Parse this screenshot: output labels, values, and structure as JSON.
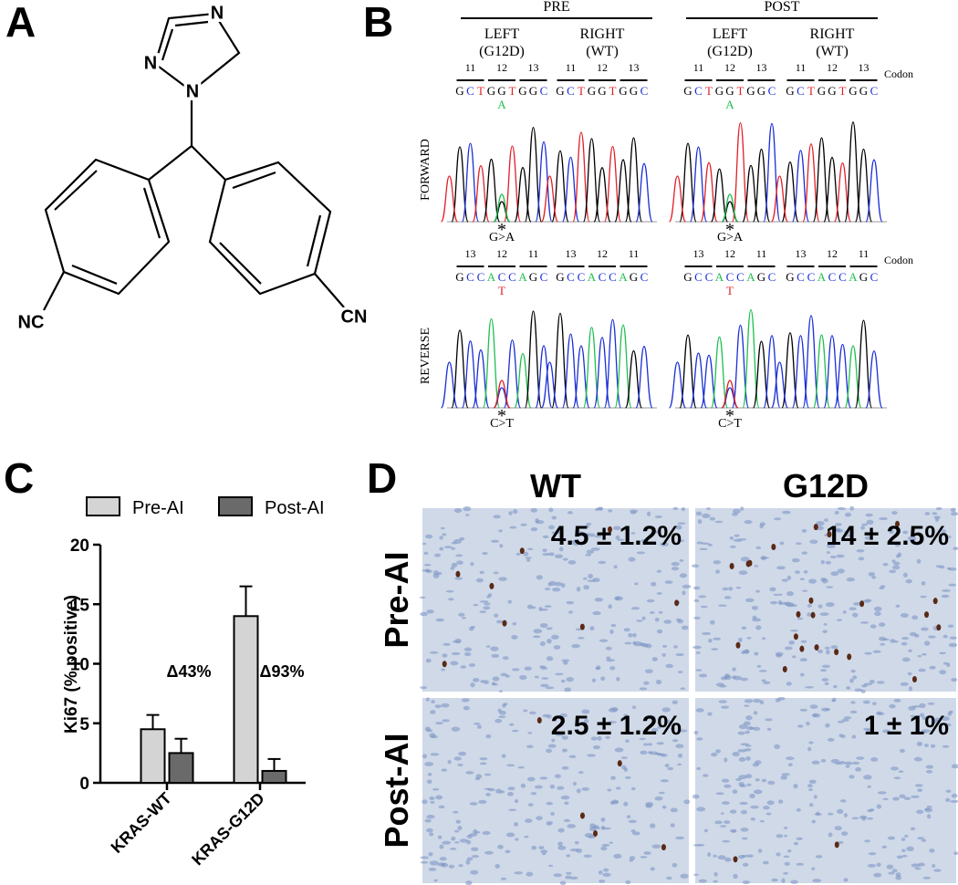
{
  "panel_a": {
    "label": "A",
    "atoms": [
      "N",
      "N",
      "N",
      "NC",
      "CN"
    ]
  },
  "panel_b": {
    "label": "B",
    "groups": [
      "PRE",
      "POST"
    ],
    "samples": [
      [
        "LEFT",
        "(G12D)"
      ],
      [
        "RIGHT",
        "(WT)"
      ],
      [
        "LEFT",
        "(G12D)"
      ],
      [
        "RIGHT",
        "(WT)"
      ]
    ],
    "codon_label": "Codon",
    "forward": {
      "name": "FORWARD",
      "codons": [
        "11",
        "12",
        "13"
      ],
      "bases": [
        "G",
        "C",
        "T",
        "G",
        "G",
        "T",
        "G",
        "G",
        "C"
      ],
      "mutant_base": "A",
      "marker": "*",
      "change": "G>A"
    },
    "reverse": {
      "name": "REVERSE",
      "codons": [
        "13",
        "12",
        "11"
      ],
      "bases": [
        "G",
        "C",
        "C",
        "A",
        "C",
        "C",
        "A",
        "G",
        "C"
      ],
      "mutant_base": "T",
      "marker": "*",
      "change": "C>T"
    }
  },
  "chart_data": {
    "type": "bar",
    "label": "C",
    "ylabel": "Ki67 (% positive)",
    "categories": [
      "KRAS-WT",
      "KRAS-G12D"
    ],
    "series": [
      {
        "name": "Pre-AI",
        "color": "#d4d4d4",
        "values": [
          4.5,
          14
        ],
        "errors": [
          1.2,
          2.5
        ]
      },
      {
        "name": "Post-AI",
        "color": "#6a6a6a",
        "values": [
          2.5,
          1
        ],
        "errors": [
          1.2,
          1
        ]
      }
    ],
    "ylim": [
      0,
      20
    ],
    "yticks": [
      0,
      5,
      10,
      15,
      20
    ],
    "annotations": [
      "Δ43%",
      "Δ93%"
    ]
  },
  "panel_d": {
    "label": "D",
    "columns": [
      "WT",
      "G12D"
    ],
    "rows": [
      "Pre-AI",
      "Post-AI"
    ],
    "values": [
      [
        "4.5 ± 1.2%",
        "14 ± 2.5%"
      ],
      [
        "2.5 ± 1.2%",
        "1 ± 1%"
      ]
    ]
  }
}
